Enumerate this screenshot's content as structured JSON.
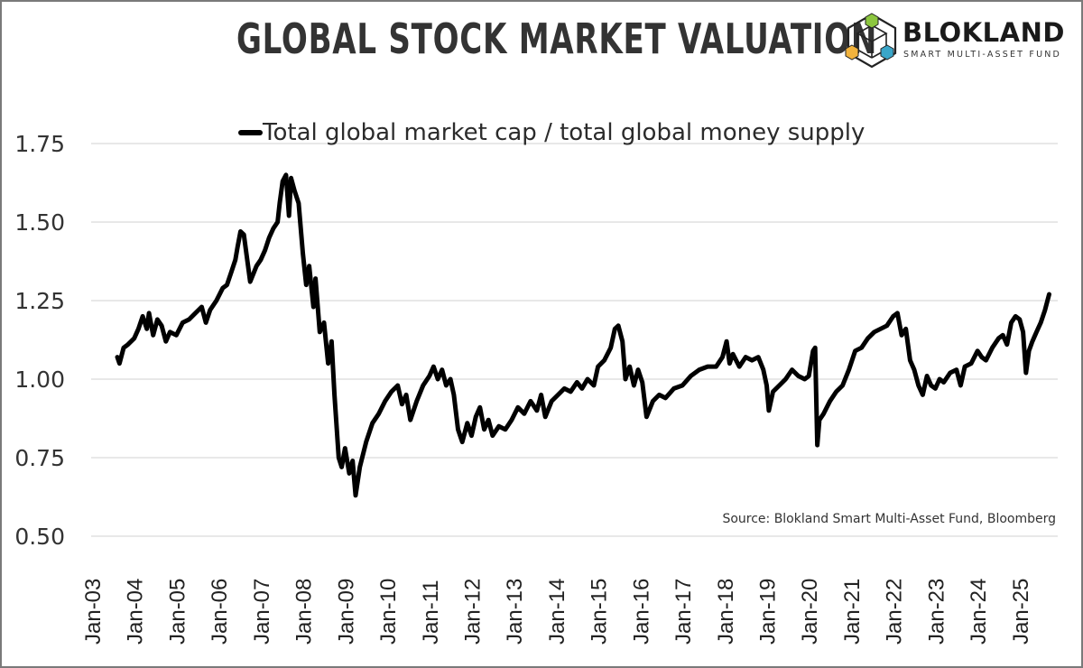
{
  "header": {
    "title": "GLOBAL STOCK MARKET VALUATION",
    "logo": {
      "name": "BLOKLAND",
      "tagline": "SMART MULTI-ASSET FUND",
      "icon": "hexagon-cube-icon",
      "colors": {
        "green": "#8cc63f",
        "yellow": "#f2b33d",
        "blue": "#3aa6c9"
      }
    }
  },
  "chart_data": {
    "type": "line",
    "title": "GLOBAL STOCK MARKET VALUATION",
    "xlabel": "",
    "ylabel": "",
    "ylim": [
      0.5,
      1.75
    ],
    "yticks": [
      "1.75",
      "1.50",
      "1.25",
      "1.00",
      "0.75",
      "0.50"
    ],
    "ytick_values": [
      1.75,
      1.5,
      1.25,
      1.0,
      0.75,
      0.5
    ],
    "xlim": [
      2003.0,
      2025.95
    ],
    "xticks": [
      "Jan-03",
      "Jan-04",
      "Jan-05",
      "Jan-06",
      "Jan-07",
      "Jan-08",
      "Jan-09",
      "Jan-10",
      "Jan-11",
      "Jan-12",
      "Jan-13",
      "Jan-14",
      "Jan-15",
      "Jan-16",
      "Jan-17",
      "Jan-18",
      "Jan-19",
      "Jan-20",
      "Jan-21",
      "Jan-22",
      "Jan-23",
      "Jan-24",
      "Jan-25"
    ],
    "grid": true,
    "legend_position": "top-center",
    "source": "Source: Blokland Smart Multi-Asset Fund, Bloomberg",
    "line_color": "#000000",
    "series": [
      {
        "name": "Total global market cap / total global money supply",
        "x": [
          2003.6,
          2003.65,
          2003.75,
          2003.85,
          2004.0,
          2004.1,
          2004.2,
          2004.3,
          2004.35,
          2004.45,
          2004.55,
          2004.65,
          2004.75,
          2004.85,
          2005.0,
          2005.15,
          2005.3,
          2005.45,
          2005.6,
          2005.7,
          2005.8,
          2005.95,
          2006.1,
          2006.2,
          2006.3,
          2006.4,
          2006.45,
          2006.52,
          2006.6,
          2006.75,
          2006.9,
          2007.0,
          2007.1,
          2007.2,
          2007.3,
          2007.4,
          2007.45,
          2007.52,
          2007.6,
          2007.67,
          2007.72,
          2007.8,
          2007.9,
          2008.0,
          2008.08,
          2008.15,
          2008.25,
          2008.3,
          2008.4,
          2008.5,
          2008.6,
          2008.68,
          2008.75,
          2008.85,
          2008.92,
          2009.0,
          2009.1,
          2009.18,
          2009.25,
          2009.35,
          2009.5,
          2009.65,
          2009.8,
          2009.95,
          2010.1,
          2010.25,
          2010.35,
          2010.45,
          2010.55,
          2010.7,
          2010.85,
          2011.0,
          2011.1,
          2011.2,
          2011.3,
          2011.4,
          2011.5,
          2011.58,
          2011.68,
          2011.78,
          2011.9,
          2012.0,
          2012.1,
          2012.2,
          2012.3,
          2012.4,
          2012.5,
          2012.65,
          2012.8,
          2012.95,
          2013.1,
          2013.25,
          2013.4,
          2013.55,
          2013.65,
          2013.75,
          2013.9,
          2014.05,
          2014.2,
          2014.35,
          2014.5,
          2014.62,
          2014.75,
          2014.9,
          2015.0,
          2015.15,
          2015.3,
          2015.4,
          2015.48,
          2015.58,
          2015.65,
          2015.75,
          2015.85,
          2015.95,
          2016.05,
          2016.15,
          2016.3,
          2016.45,
          2016.6,
          2016.8,
          2017.0,
          2017.2,
          2017.4,
          2017.6,
          2017.8,
          2017.95,
          2018.05,
          2018.12,
          2018.2,
          2018.35,
          2018.5,
          2018.65,
          2018.8,
          2018.92,
          2019.0,
          2019.05,
          2019.15,
          2019.3,
          2019.45,
          2019.6,
          2019.75,
          2019.9,
          2020.0,
          2020.1,
          2020.15,
          2020.2,
          2020.25,
          2020.35,
          2020.5,
          2020.65,
          2020.8,
          2020.95,
          2021.1,
          2021.25,
          2021.4,
          2021.55,
          2021.7,
          2021.85,
          2022.0,
          2022.1,
          2022.2,
          2022.3,
          2022.4,
          2022.5,
          2022.6,
          2022.7,
          2022.8,
          2022.9,
          2023.0,
          2023.1,
          2023.2,
          2023.35,
          2023.5,
          2023.6,
          2023.7,
          2023.85,
          2024.0,
          2024.1,
          2024.2,
          2024.35,
          2024.5,
          2024.6,
          2024.7,
          2024.8,
          2024.9,
          2025.0,
          2025.08,
          2025.15,
          2025.22,
          2025.3,
          2025.4,
          2025.5,
          2025.6,
          2025.7
        ],
        "y": [
          1.07,
          1.05,
          1.1,
          1.11,
          1.13,
          1.16,
          1.2,
          1.16,
          1.21,
          1.14,
          1.19,
          1.17,
          1.12,
          1.15,
          1.14,
          1.18,
          1.19,
          1.21,
          1.23,
          1.18,
          1.22,
          1.25,
          1.29,
          1.3,
          1.34,
          1.38,
          1.42,
          1.47,
          1.46,
          1.31,
          1.36,
          1.38,
          1.41,
          1.45,
          1.48,
          1.5,
          1.56,
          1.63,
          1.65,
          1.52,
          1.64,
          1.6,
          1.56,
          1.4,
          1.3,
          1.36,
          1.23,
          1.32,
          1.15,
          1.18,
          1.05,
          1.12,
          0.95,
          0.75,
          0.72,
          0.78,
          0.7,
          0.74,
          0.63,
          0.72,
          0.8,
          0.86,
          0.89,
          0.93,
          0.96,
          0.98,
          0.92,
          0.95,
          0.87,
          0.93,
          0.98,
          1.01,
          1.04,
          1.0,
          1.03,
          0.98,
          1.0,
          0.95,
          0.84,
          0.8,
          0.86,
          0.82,
          0.88,
          0.91,
          0.84,
          0.87,
          0.82,
          0.85,
          0.84,
          0.87,
          0.91,
          0.89,
          0.93,
          0.9,
          0.95,
          0.88,
          0.93,
          0.95,
          0.97,
          0.96,
          0.99,
          0.97,
          1.0,
          0.98,
          1.04,
          1.06,
          1.1,
          1.16,
          1.17,
          1.12,
          1.0,
          1.04,
          0.98,
          1.03,
          0.99,
          0.88,
          0.93,
          0.95,
          0.94,
          0.97,
          0.98,
          1.01,
          1.03,
          1.04,
          1.04,
          1.07,
          1.12,
          1.05,
          1.08,
          1.04,
          1.07,
          1.06,
          1.07,
          1.03,
          0.98,
          0.9,
          0.96,
          0.98,
          1.0,
          1.03,
          1.01,
          1.0,
          1.01,
          1.09,
          1.1,
          0.79,
          0.87,
          0.89,
          0.93,
          0.96,
          0.98,
          1.03,
          1.09,
          1.1,
          1.13,
          1.15,
          1.16,
          1.17,
          1.2,
          1.21,
          1.14,
          1.16,
          1.06,
          1.03,
          0.98,
          0.95,
          1.01,
          0.98,
          0.97,
          1.0,
          0.99,
          1.02,
          1.03,
          0.98,
          1.04,
          1.05,
          1.09,
          1.07,
          1.06,
          1.1,
          1.13,
          1.14,
          1.11,
          1.18,
          1.2,
          1.19,
          1.15,
          1.02,
          1.09,
          1.12,
          1.15,
          1.18,
          1.22,
          1.27
        ]
      }
    ]
  }
}
